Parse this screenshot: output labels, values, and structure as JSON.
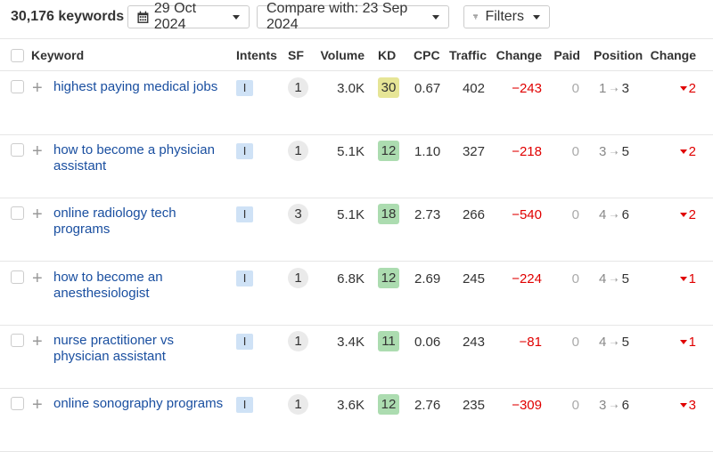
{
  "toolbar": {
    "keyword_count": "30,176 keywords",
    "date": "29 Oct 2024",
    "compare": "Compare with: 23 Sep 2024",
    "filters": "Filters"
  },
  "columns": [
    "Keyword",
    "Intents",
    "SF",
    "Volume",
    "KD",
    "CPC",
    "Traffic",
    "Change",
    "Paid",
    "Position",
    "Change"
  ],
  "colors": {
    "link": "#1a4fa0",
    "negative": "#e00000",
    "kd_easy": "#acdcb0",
    "kd_medium": "#e6e596",
    "intent": "#cfe2f6"
  },
  "rows": [
    {
      "keyword": "highest paying medical jobs",
      "intent": "I",
      "sf": "1",
      "volume": "3.0K",
      "kd": "30",
      "kd_color": "#e6e596",
      "cpc": "0.67",
      "traffic": "402",
      "change": "−243",
      "paid": "0",
      "pos_from": "1",
      "pos_to": "3",
      "pos_change": "2"
    },
    {
      "keyword": "how to become a physician assistant",
      "intent": "I",
      "sf": "1",
      "volume": "5.1K",
      "kd": "12",
      "kd_color": "#acdcb0",
      "cpc": "1.10",
      "traffic": "327",
      "change": "−218",
      "paid": "0",
      "pos_from": "3",
      "pos_to": "5",
      "pos_change": "2"
    },
    {
      "keyword": "online radiology tech programs",
      "intent": "I",
      "sf": "3",
      "volume": "5.1K",
      "kd": "18",
      "kd_color": "#acdcb0",
      "cpc": "2.73",
      "traffic": "266",
      "change": "−540",
      "paid": "0",
      "pos_from": "4",
      "pos_to": "6",
      "pos_change": "2"
    },
    {
      "keyword": "how to become an anesthesiologist",
      "intent": "I",
      "sf": "1",
      "volume": "6.8K",
      "kd": "12",
      "kd_color": "#acdcb0",
      "cpc": "2.69",
      "traffic": "245",
      "change": "−224",
      "paid": "0",
      "pos_from": "4",
      "pos_to": "5",
      "pos_change": "1"
    },
    {
      "keyword": "nurse practitioner vs physician assistant",
      "intent": "I",
      "sf": "1",
      "volume": "3.4K",
      "kd": "11",
      "kd_color": "#acdcb0",
      "cpc": "0.06",
      "traffic": "243",
      "change": "−81",
      "paid": "0",
      "pos_from": "4",
      "pos_to": "5",
      "pos_change": "1"
    },
    {
      "keyword": "online sonography programs",
      "intent": "I",
      "sf": "1",
      "volume": "3.6K",
      "kd": "12",
      "kd_color": "#acdcb0",
      "cpc": "2.76",
      "traffic": "235",
      "change": "−309",
      "paid": "0",
      "pos_from": "3",
      "pos_to": "6",
      "pos_change": "3"
    }
  ]
}
